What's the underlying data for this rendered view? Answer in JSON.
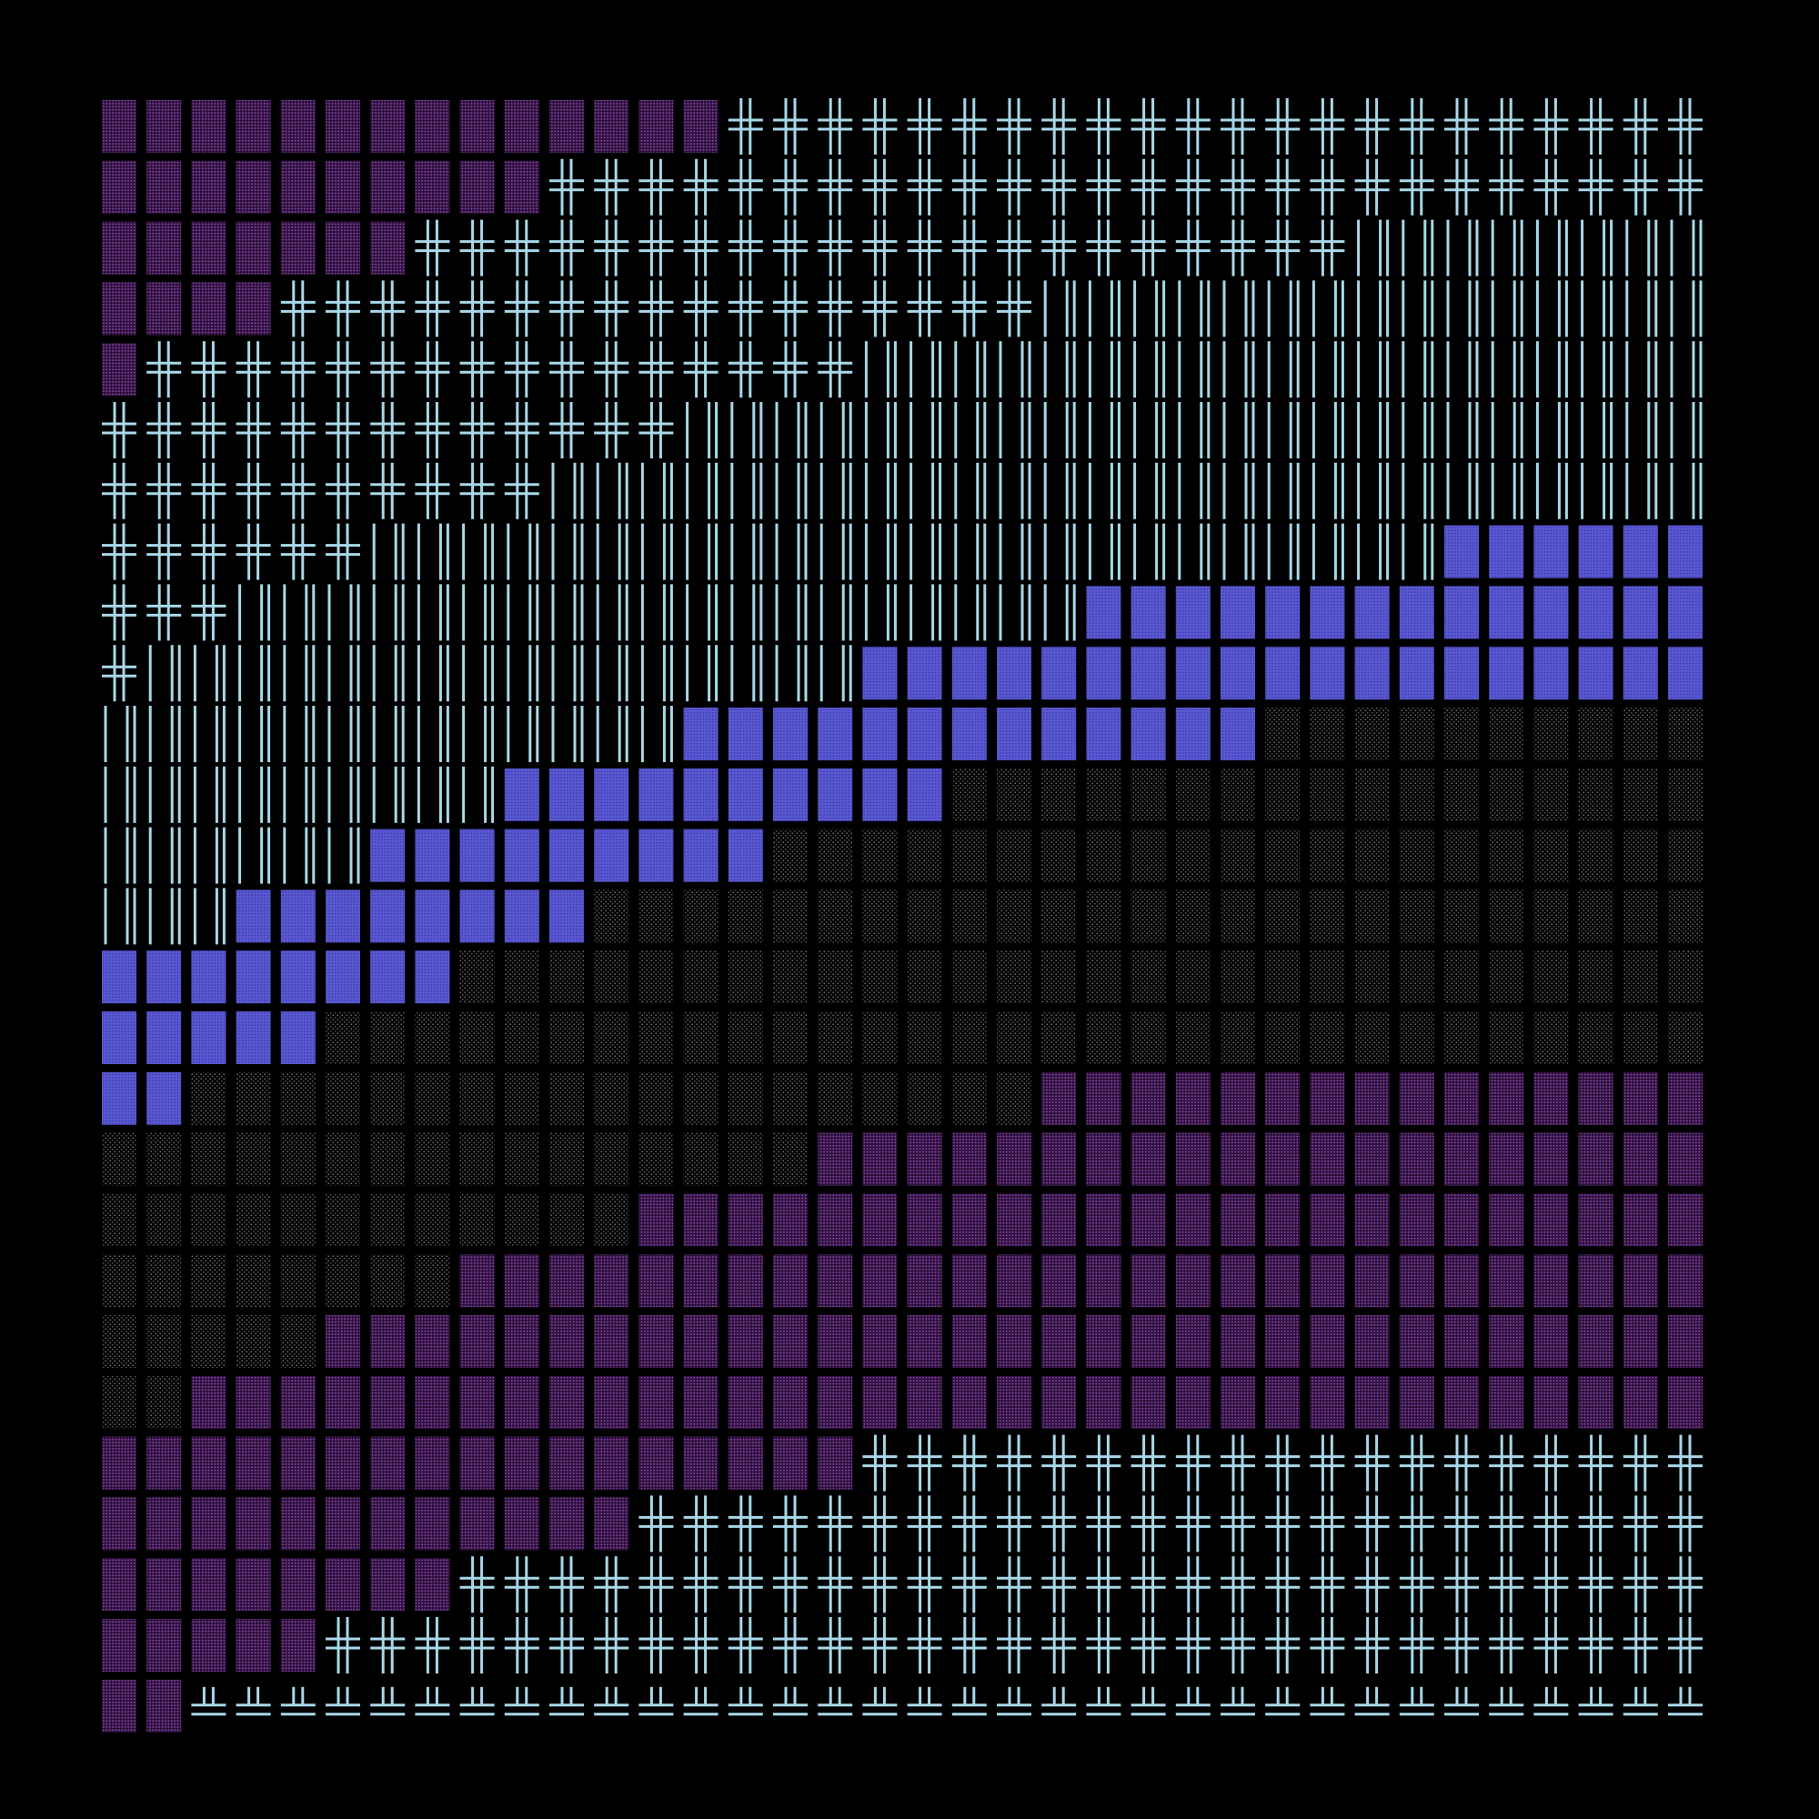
{
  "artwork": {
    "background_color": "#000000",
    "columns": 36,
    "rows": 27,
    "colors": {
      "double_cross_glyph": "#a8d8e8",
      "vertical_bar_glyph": "#a8d8e8",
      "solid_block": "#5b59cf",
      "purple_dot_block": "#7a3e96",
      "gray_dot_block": "#6a6a6a"
    },
    "cell_types": [
      "purple-dotted-block",
      "double-cross-glyph",
      "vertical-bar-glyph",
      "solid-blue-block",
      "gray-dotted-block",
      "double-up-glyph"
    ],
    "row_bands": [
      {
        "row": 0,
        "segments": [
          {
            "type": "purple-dotted-block",
            "count": 14
          },
          {
            "type": "double-cross-glyph",
            "count": 22
          }
        ]
      },
      {
        "row": 1,
        "segments": [
          {
            "type": "purple-dotted-block",
            "count": 10
          },
          {
            "type": "double-cross-glyph",
            "count": 26
          }
        ]
      },
      {
        "row": 2,
        "segments": [
          {
            "type": "purple-dotted-block",
            "count": 7
          },
          {
            "type": "double-cross-glyph",
            "count": 21
          },
          {
            "type": "vertical-bar-glyph",
            "count": 8
          }
        ]
      },
      {
        "row": 3,
        "segments": [
          {
            "type": "purple-dotted-block",
            "count": 4
          },
          {
            "type": "double-cross-glyph",
            "count": 17
          },
          {
            "type": "vertical-bar-glyph",
            "count": 15
          }
        ]
      },
      {
        "row": 4,
        "segments": [
          {
            "type": "purple-dotted-block",
            "count": 1
          },
          {
            "type": "double-cross-glyph",
            "count": 16
          },
          {
            "type": "vertical-bar-glyph",
            "count": 19
          }
        ]
      },
      {
        "row": 5,
        "segments": [
          {
            "type": "double-cross-glyph",
            "count": 13
          },
          {
            "type": "vertical-bar-glyph",
            "count": 23
          }
        ]
      },
      {
        "row": 6,
        "segments": [
          {
            "type": "double-cross-glyph",
            "count": 10
          },
          {
            "type": "vertical-bar-glyph",
            "count": 26
          }
        ]
      },
      {
        "row": 7,
        "segments": [
          {
            "type": "double-cross-glyph",
            "count": 6
          },
          {
            "type": "vertical-bar-glyph",
            "count": 24
          },
          {
            "type": "solid-blue-block",
            "count": 6
          }
        ]
      },
      {
        "row": 8,
        "segments": [
          {
            "type": "double-cross-glyph",
            "count": 3
          },
          {
            "type": "vertical-bar-glyph",
            "count": 19
          },
          {
            "type": "solid-blue-block",
            "count": 14
          }
        ]
      },
      {
        "row": 9,
        "segments": [
          {
            "type": "double-cross-glyph",
            "count": 1
          },
          {
            "type": "vertical-bar-glyph",
            "count": 16
          },
          {
            "type": "solid-blue-block",
            "count": 19
          }
        ]
      },
      {
        "row": 10,
        "segments": [
          {
            "type": "vertical-bar-glyph",
            "count": 13
          },
          {
            "type": "solid-blue-block",
            "count": 13
          },
          {
            "type": "gray-dotted-block",
            "count": 10
          }
        ]
      },
      {
        "row": 11,
        "segments": [
          {
            "type": "vertical-bar-glyph",
            "count": 9
          },
          {
            "type": "solid-blue-block",
            "count": 10
          },
          {
            "type": "gray-dotted-block",
            "count": 17
          }
        ]
      },
      {
        "row": 12,
        "segments": [
          {
            "type": "vertical-bar-glyph",
            "count": 6
          },
          {
            "type": "solid-blue-block",
            "count": 9
          },
          {
            "type": "gray-dotted-block",
            "count": 21
          }
        ]
      },
      {
        "row": 13,
        "segments": [
          {
            "type": "vertical-bar-glyph",
            "count": 3
          },
          {
            "type": "solid-blue-block",
            "count": 8
          },
          {
            "type": "gray-dotted-block",
            "count": 25
          }
        ]
      },
      {
        "row": 14,
        "segments": [
          {
            "type": "solid-blue-block",
            "count": 8
          },
          {
            "type": "gray-dotted-block",
            "count": 28
          }
        ]
      },
      {
        "row": 15,
        "segments": [
          {
            "type": "solid-blue-block",
            "count": 5
          },
          {
            "type": "gray-dotted-block",
            "count": 31
          }
        ]
      },
      {
        "row": 16,
        "segments": [
          {
            "type": "solid-blue-block",
            "count": 2
          },
          {
            "type": "gray-dotted-block",
            "count": 19
          },
          {
            "type": "purple-dotted-block",
            "count": 15
          }
        ]
      },
      {
        "row": 17,
        "segments": [
          {
            "type": "gray-dotted-block",
            "count": 16
          },
          {
            "type": "purple-dotted-block",
            "count": 20
          }
        ]
      },
      {
        "row": 18,
        "segments": [
          {
            "type": "gray-dotted-block",
            "count": 12
          },
          {
            "type": "purple-dotted-block",
            "count": 24
          }
        ]
      },
      {
        "row": 19,
        "segments": [
          {
            "type": "gray-dotted-block",
            "count": 8
          },
          {
            "type": "purple-dotted-block",
            "count": 28
          }
        ]
      },
      {
        "row": 20,
        "segments": [
          {
            "type": "gray-dotted-block",
            "count": 5
          },
          {
            "type": "purple-dotted-block",
            "count": 31
          }
        ]
      },
      {
        "row": 21,
        "segments": [
          {
            "type": "gray-dotted-block",
            "count": 2
          },
          {
            "type": "purple-dotted-block",
            "count": 34
          }
        ]
      },
      {
        "row": 22,
        "segments": [
          {
            "type": "purple-dotted-block",
            "count": 17
          },
          {
            "type": "double-cross-glyph",
            "count": 19
          }
        ]
      },
      {
        "row": 23,
        "segments": [
          {
            "type": "purple-dotted-block",
            "count": 12
          },
          {
            "type": "double-cross-glyph",
            "count": 24
          }
        ]
      },
      {
        "row": 24,
        "segments": [
          {
            "type": "purple-dotted-block",
            "count": 8
          },
          {
            "type": "double-cross-glyph",
            "count": 28
          }
        ]
      },
      {
        "row": 25,
        "segments": [
          {
            "type": "purple-dotted-block",
            "count": 5
          },
          {
            "type": "double-cross-glyph",
            "count": 31
          }
        ]
      },
      {
        "row": 26,
        "segments": [
          {
            "type": "purple-dotted-block",
            "count": 2
          },
          {
            "type": "double-up-glyph",
            "count": 34
          }
        ]
      }
    ]
  }
}
